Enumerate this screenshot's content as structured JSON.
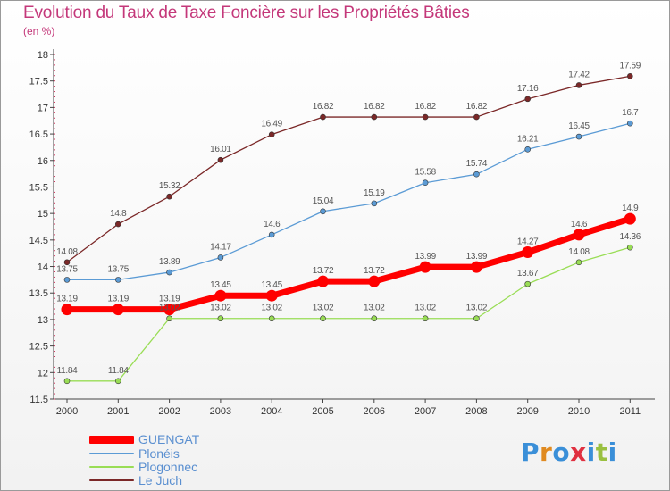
{
  "chart_data": {
    "type": "line",
    "title": "Evolution du Taux de Taxe Foncière sur les Propriétés Bâties",
    "subtitle": "(en %)",
    "x": [
      "2000",
      "2001",
      "2002",
      "2003",
      "2004",
      "2005",
      "2006",
      "2007",
      "2008",
      "2009",
      "2010",
      "2011"
    ],
    "ylim": [
      11.5,
      18
    ],
    "yticks": [
      "11.5",
      "12",
      "12.5",
      "13",
      "13.5",
      "14",
      "14.5",
      "15",
      "15.5",
      "16",
      "16.5",
      "17",
      "17.5",
      "18"
    ],
    "grid": false,
    "legend_position": "bottom-left",
    "series": [
      {
        "name": "GUENGAT",
        "color": "#ff0000",
        "values": [
          13.19,
          13.19,
          13.19,
          13.45,
          13.45,
          13.72,
          13.72,
          13.99,
          13.99,
          14.27,
          14.6,
          14.9
        ],
        "labels": [
          "13.19",
          "13.19",
          "13.19",
          "13.45",
          "13.45",
          "13.72",
          "13.72",
          "13.99",
          "13.99",
          "14.27",
          "14.6",
          "14.9"
        ]
      },
      {
        "name": "Plonéis",
        "color": "#5b9bd5",
        "values": [
          13.75,
          13.75,
          13.89,
          14.17,
          14.6,
          15.04,
          15.19,
          15.58,
          15.74,
          16.21,
          16.45,
          16.7
        ],
        "labels": [
          "13.75",
          "13.75",
          "13.89",
          "14.17",
          "14.6",
          "15.04",
          "15.19",
          "15.58",
          "15.74",
          "16.21",
          "16.45",
          "16.7"
        ]
      },
      {
        "name": "Plogonnec",
        "color": "#99dd55",
        "values": [
          11.84,
          11.84,
          13.02,
          13.02,
          13.02,
          13.02,
          13.02,
          13.02,
          13.02,
          13.67,
          14.08,
          14.36
        ],
        "labels": [
          "11.84",
          "11.84",
          "13.02",
          "13.02",
          "13.02",
          "13.02",
          "13.02",
          "13.02",
          "13.02",
          "13.67",
          "14.08",
          "14.36"
        ]
      },
      {
        "name": "Le Juch",
        "color": "#7b2828",
        "values": [
          14.08,
          14.8,
          15.32,
          16.01,
          16.49,
          16.82,
          16.82,
          16.82,
          16.82,
          17.16,
          17.42,
          17.59
        ],
        "labels": [
          "14.08",
          "14.8",
          "15.32",
          "16.01",
          "16.49",
          "16.82",
          "16.82",
          "16.82",
          "16.82",
          "17.16",
          "17.42",
          "17.59"
        ]
      }
    ]
  },
  "logo": {
    "letters": [
      "P",
      "r",
      "o",
      "x",
      "i",
      "t",
      "i"
    ],
    "colors": [
      "#3a8fd8",
      "#e08a20",
      "#3a8fd8",
      "#e03040",
      "#3a8fd8",
      "#9ac040",
      "#3a8fd8"
    ]
  }
}
